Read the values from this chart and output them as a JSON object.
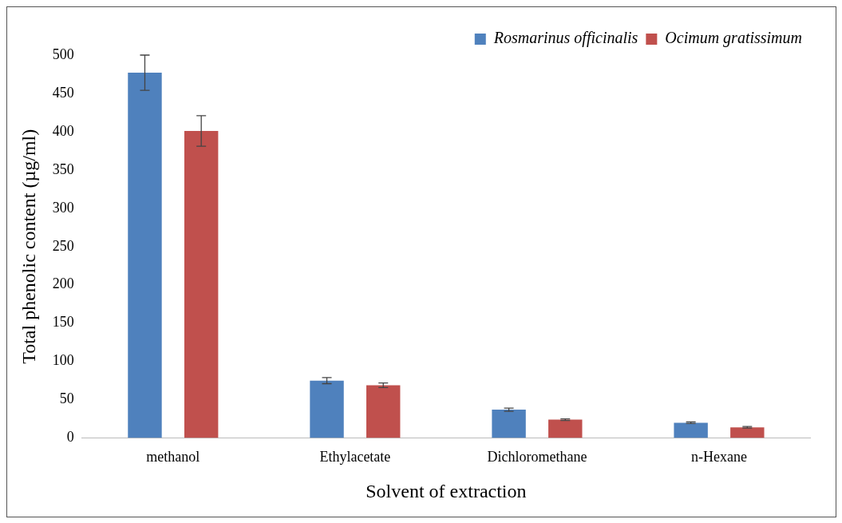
{
  "chart_data": {
    "type": "bar",
    "xlabel": "Solvent of extraction",
    "ylabel": "Total phenolic content (µg/ml)",
    "categories": [
      "methanol",
      "Ethylacetate",
      "Dichloromethane",
      "n-Hexane"
    ],
    "series": [
      {
        "name": "Rosmarinus officinalis",
        "color": "#4f81bd",
        "values": [
          477,
          75,
          37,
          20
        ],
        "errors": [
          23,
          4,
          2,
          1
        ]
      },
      {
        "name": "Ocimum gratissimum",
        "color": "#c0504d",
        "values": [
          401,
          69,
          24,
          14
        ],
        "errors": [
          20,
          3,
          1,
          1
        ]
      }
    ],
    "ylim": [
      0,
      500
    ],
    "yticks": [
      0,
      50,
      100,
      150,
      200,
      250,
      300,
      350,
      400,
      450,
      500
    ],
    "grid": false,
    "legend": "top right"
  }
}
